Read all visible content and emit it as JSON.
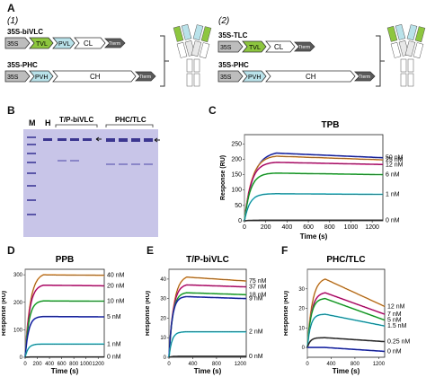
{
  "panel_letters": {
    "A": "A",
    "B": "B",
    "C": "C",
    "D": "D",
    "E": "E",
    "F": "F"
  },
  "panel_a": {
    "sub1": "(1)",
    "sub2": "(2)",
    "construct1": {
      "title": "35S-biVLC",
      "promoter": "35S",
      "parts": [
        "TVL",
        "PVL",
        "CL"
      ],
      "term": "Tterm"
    },
    "construct2": {
      "title": "35S-PHC",
      "promoter": "35S",
      "parts": [
        "PVH",
        "CH"
      ],
      "term": "Tterm"
    },
    "construct3": {
      "title": "35S-TLC",
      "promoter": "35S",
      "parts": [
        "TVL",
        "CL"
      ],
      "term": "Tterm"
    },
    "construct4": {
      "title": "35S-PHC",
      "promoter": "35S",
      "parts": [
        "PVH",
        "CH"
      ],
      "term": "Tterm"
    }
  },
  "panel_b": {
    "lane_labels": [
      "M",
      "H"
    ],
    "group1": "T/P-biVLC",
    "group2": "PHC/TLC"
  },
  "colors": {
    "c50": "#1f2fd0",
    "c25": "#f39c3a",
    "c12": "#e0198a",
    "c6": "#27c93a",
    "c1": "#27c8d8",
    "c0": "#3a3a3a",
    "tvl": "#8dc63f",
    "pvl": "#b9e2ea",
    "gel": "#c8c5e8"
  },
  "chart_data": [
    {
      "id": "C",
      "type": "line",
      "title": "TPB",
      "xlabel": "Time (s)",
      "ylabel": "Response (RU)",
      "xlim": [
        0,
        1300
      ],
      "ylim": [
        0,
        280
      ],
      "xticks": [
        0,
        200,
        400,
        600,
        800,
        1000,
        1200
      ],
      "yticks": [
        0,
        50,
        100,
        150,
        200,
        250
      ],
      "series": [
        {
          "name": "50 nM",
          "color": "#1f2fd0",
          "plateau": 220,
          "end": 205
        },
        {
          "name": "25 nM",
          "color": "#f39c3a",
          "plateau": 210,
          "end": 198
        },
        {
          "name": "12 nM",
          "color": "#e0198a",
          "plateau": 190,
          "end": 183
        },
        {
          "name": "6 nM",
          "color": "#27c93a",
          "plateau": 155,
          "end": 150
        },
        {
          "name": "1 nM",
          "color": "#27c8d8",
          "plateau": 88,
          "end": 86
        },
        {
          "name": "0 nM",
          "color": "#3a3a3a",
          "plateau": 2,
          "end": 2
        }
      ]
    },
    {
      "id": "D",
      "type": "line",
      "title": "PPB",
      "xlabel": "Time (s)",
      "ylabel": "Response (RU)",
      "xlim": [
        0,
        1300
      ],
      "ylim": [
        0,
        320
      ],
      "xticks": [
        0,
        200,
        400,
        600,
        800,
        1000,
        1200
      ],
      "yticks": [
        0,
        100,
        200,
        300
      ],
      "series": [
        {
          "name": "40 nM",
          "color": "#f39c3a",
          "plateau": 300,
          "end": 298
        },
        {
          "name": "20 nM",
          "color": "#e0198a",
          "plateau": 262,
          "end": 260
        },
        {
          "name": "10 nM",
          "color": "#27c93a",
          "plateau": 205,
          "end": 204
        },
        {
          "name": "5 nM",
          "color": "#1f2fd0",
          "plateau": 148,
          "end": 147
        },
        {
          "name": "1 nM",
          "color": "#27c8d8",
          "plateau": 48,
          "end": 48
        },
        {
          "name": "0 nM",
          "color": "#3a3a3a",
          "plateau": 1,
          "end": 1
        }
      ]
    },
    {
      "id": "E",
      "type": "line",
      "title": "T/P-biVLC",
      "xlabel": "Time (s)",
      "ylabel": "Response (RU)",
      "xlim": [
        0,
        1300
      ],
      "ylim": [
        0,
        45
      ],
      "xticks": [
        0,
        400,
        800,
        1200
      ],
      "yticks": [
        0,
        10,
        20,
        30,
        40
      ],
      "series": [
        {
          "name": "75 nM",
          "color": "#f39c3a",
          "plateau": 41,
          "end": 39
        },
        {
          "name": "37 nM",
          "color": "#e0198a",
          "plateau": 37,
          "end": 36
        },
        {
          "name": "18 nM",
          "color": "#27c93a",
          "plateau": 33,
          "end": 32
        },
        {
          "name": "9 nM",
          "color": "#1f2fd0",
          "plateau": 31,
          "end": 30
        },
        {
          "name": "2 nM",
          "color": "#27c8d8",
          "plateau": 13,
          "end": 13
        },
        {
          "name": "0 nM",
          "color": "#3a3a3a",
          "plateau": 0.5,
          "end": 0.5
        }
      ]
    },
    {
      "id": "F",
      "type": "line",
      "title": "PHC/TLC",
      "xlabel": "Time (s)",
      "ylabel": "Response (RU)",
      "xlim": [
        0,
        1300
      ],
      "ylim": [
        -5,
        40
      ],
      "xticks": [
        0,
        400,
        800,
        1200
      ],
      "yticks": [
        0,
        10,
        20,
        30
      ],
      "series": [
        {
          "name": "12 nM",
          "color": "#f39c3a",
          "plateau": 35,
          "end": 21
        },
        {
          "name": "7 nM",
          "color": "#e0198a",
          "plateau": 28,
          "end": 17
        },
        {
          "name": "5 nM",
          "color": "#27c93a",
          "plateau": 25,
          "end": 14
        },
        {
          "name": "1.5 nM",
          "color": "#27c8d8",
          "plateau": 17,
          "end": 11
        },
        {
          "name": "0.25 nM",
          "color": "#3a3a3a",
          "plateau": 5,
          "end": 3
        },
        {
          "name": "0 nM",
          "color": "#1f2fd0",
          "plateau": 0,
          "end": -2
        }
      ]
    }
  ]
}
